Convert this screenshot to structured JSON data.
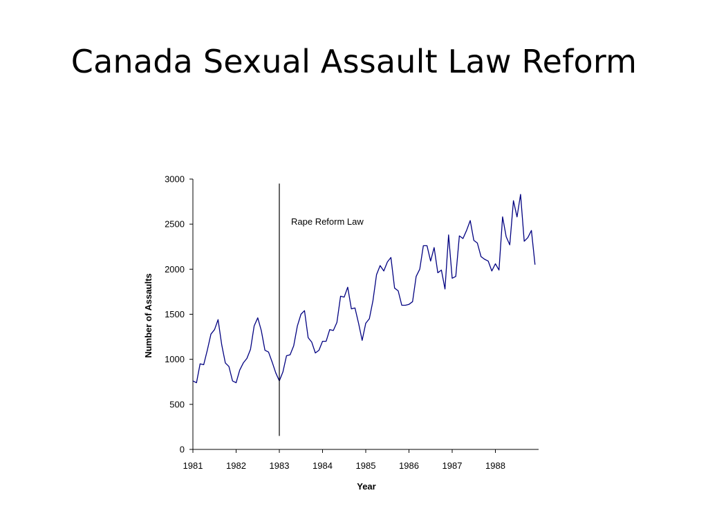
{
  "slide": {
    "title": "Canada Sexual Assault Law Reform"
  },
  "chart_data": {
    "type": "line",
    "xlabel": "Year",
    "ylabel": "Number of Assaults",
    "xlim": [
      1981,
      1989
    ],
    "ylim": [
      0,
      3000
    ],
    "x_ticks": [
      1981,
      1982,
      1983,
      1984,
      1985,
      1986,
      1987,
      1988
    ],
    "x_tick_labels": [
      "1981",
      "1982",
      "1983",
      "1984",
      "1985",
      "1986",
      "1987",
      "1988"
    ],
    "y_ticks": [
      0,
      500,
      1000,
      1500,
      2000,
      2500,
      3000
    ],
    "y_tick_labels": [
      "0",
      "500",
      "1000",
      "1500",
      "2000",
      "2500",
      "3000"
    ],
    "grid": false,
    "legend": "none",
    "series": [
      {
        "color": "#000080",
        "x": [
          1981.0,
          1981.083,
          1981.167,
          1981.25,
          1981.333,
          1981.417,
          1981.5,
          1981.583,
          1981.667,
          1981.75,
          1981.833,
          1981.917,
          1982.0,
          1982.083,
          1982.167,
          1982.25,
          1982.333,
          1982.417,
          1982.5,
          1982.583,
          1982.667,
          1982.75,
          1982.833,
          1982.917,
          1983.0,
          1983.083,
          1983.167,
          1983.25,
          1983.333,
          1983.417,
          1983.5,
          1983.583,
          1983.667,
          1983.75,
          1983.833,
          1983.917,
          1984.0,
          1984.083,
          1984.167,
          1984.25,
          1984.333,
          1984.417,
          1984.5,
          1984.583,
          1984.667,
          1984.75,
          1984.833,
          1984.917,
          1985.0,
          1985.083,
          1985.167,
          1985.25,
          1985.333,
          1985.417,
          1985.5,
          1985.583,
          1985.667,
          1985.75,
          1985.833,
          1985.917,
          1986.0,
          1986.083,
          1986.167,
          1986.25,
          1986.333,
          1986.417,
          1986.5,
          1986.583,
          1986.667,
          1986.75,
          1986.833,
          1986.917,
          1987.0,
          1987.083,
          1987.167,
          1987.25,
          1987.333,
          1987.417,
          1987.5,
          1987.583,
          1987.667,
          1987.75,
          1987.833,
          1987.917,
          1988.0,
          1988.083,
          1988.167,
          1988.25,
          1988.333,
          1988.417,
          1988.5,
          1988.583,
          1988.667,
          1988.75,
          1988.833,
          1988.917
        ],
        "y": [
          760,
          740,
          950,
          940,
          1100,
          1280,
          1330,
          1440,
          1160,
          960,
          920,
          760,
          740,
          880,
          960,
          1010,
          1110,
          1370,
          1460,
          1320,
          1100,
          1080,
          970,
          850,
          760,
          860,
          1040,
          1050,
          1150,
          1370,
          1500,
          1540,
          1240,
          1190,
          1070,
          1100,
          1200,
          1200,
          1330,
          1320,
          1410,
          1700,
          1690,
          1800,
          1560,
          1570,
          1400,
          1210,
          1400,
          1450,
          1650,
          1940,
          2040,
          1980,
          2080,
          2130,
          1790,
          1760,
          1600,
          1600,
          1610,
          1640,
          1920,
          2000,
          2260,
          2260,
          2090,
          2240,
          1960,
          1990,
          1780,
          2380,
          1900,
          1920,
          2370,
          2340,
          2430,
          2540,
          2320,
          2290,
          2140,
          2110,
          2090,
          1980,
          2060,
          1990,
          2580,
          2360,
          2270,
          2760,
          2580,
          2830,
          2310,
          2350,
          2430,
          2050
        ]
      }
    ],
    "annotations": [
      {
        "text": "Rape Reform Law",
        "x": 1983.0,
        "y_range": [
          150,
          2950
        ]
      }
    ]
  }
}
